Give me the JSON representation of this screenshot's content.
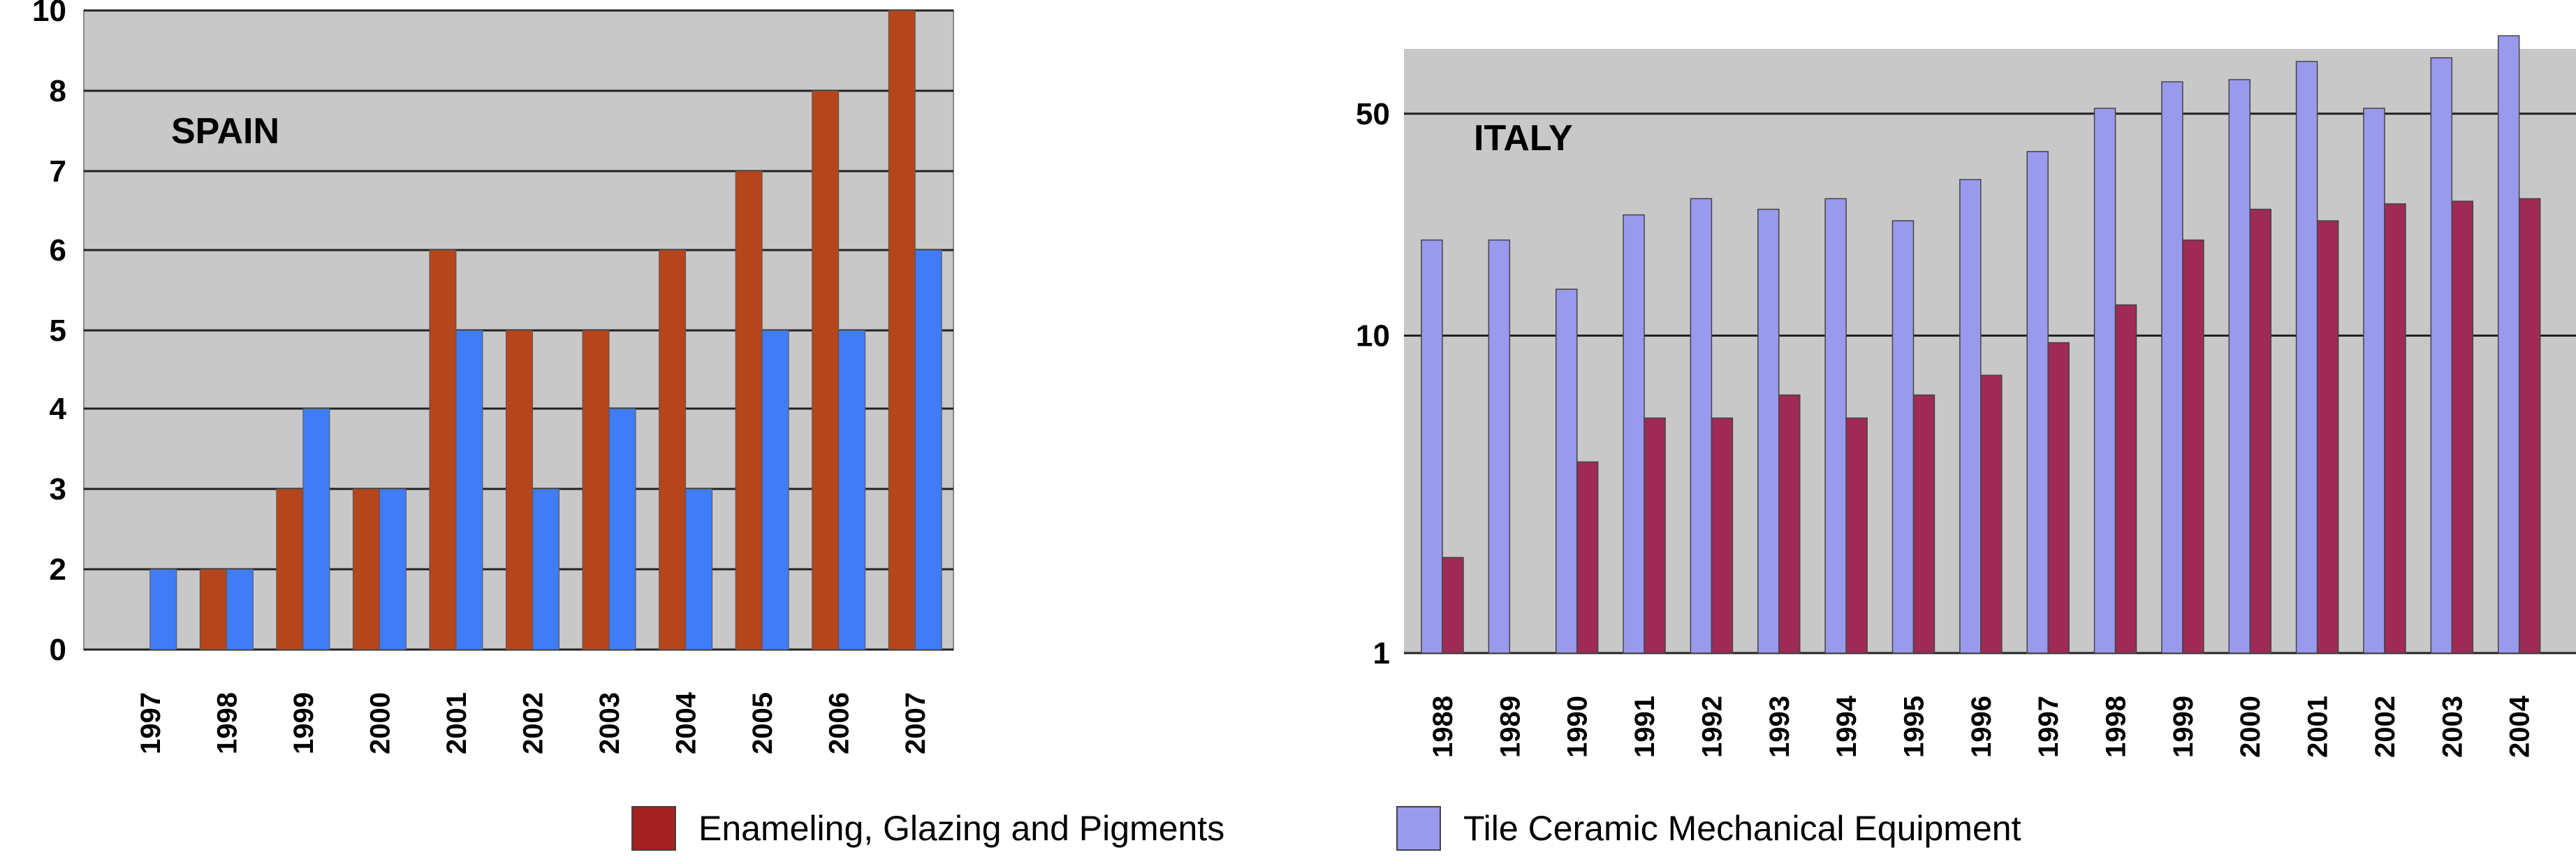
{
  "chart_data": [
    {
      "type": "bar",
      "title": "SPAIN",
      "categories": [
        "1997",
        "1998",
        "1999",
        "2000",
        "2001",
        "2002",
        "2003",
        "2004",
        "2005",
        "2006",
        "2007"
      ],
      "y_ticks": [
        "0",
        "2",
        "3",
        "4",
        "5",
        "6",
        "7",
        "8",
        "10"
      ],
      "series": [
        {
          "name": "Enameling, Glazing and Pigments",
          "color": "#b5451b",
          "values": [
            0,
            2,
            3,
            3,
            6,
            5,
            5,
            6,
            7,
            8,
            10
          ]
        },
        {
          "name": "Tile Ceramic Mechanical Equipment",
          "color": "#3f7cf5",
          "values": [
            2,
            2,
            4,
            3,
            5,
            3,
            4,
            3,
            5,
            5,
            6
          ]
        }
      ],
      "ylim": [
        0,
        10
      ],
      "grid": true,
      "background": "#c8c8c8"
    },
    {
      "type": "bar",
      "title": "ITALY",
      "yscale": "log",
      "categories": [
        "1988",
        "1989",
        "1990",
        "1991",
        "1992",
        "1993",
        "1994",
        "1995",
        "1996",
        "1997",
        "1998",
        "1999",
        "2000",
        "2001",
        "2002",
        "2003",
        "2004"
      ],
      "y_ticks": [
        "1",
        "10",
        "50"
      ],
      "series": [
        {
          "name": "Tile Ceramic Mechanical Equipment",
          "color": "#9999ee",
          "values": [
            20,
            20,
            14,
            24,
            27,
            25,
            27,
            23,
            31,
            38,
            52,
            63,
            64,
            73,
            52,
            75,
            88
          ]
        },
        {
          "name": "Enameling, Glazing and Pigments",
          "color": "#9e2a55",
          "values": [
            2,
            1,
            4,
            5.5,
            5.5,
            6.5,
            5.5,
            6.5,
            7.5,
            9.5,
            12.5,
            20,
            25,
            23,
            26,
            26.5,
            27
          ]
        }
      ],
      "ylim": [
        1,
        80
      ],
      "grid": true,
      "background": "#c8c8c8"
    }
  ],
  "legend": [
    {
      "label": "Enameling, Glazing and Pigments",
      "color": "#a32020"
    },
    {
      "label": "Tile Ceramic Mechanical Equipment",
      "color": "#9999ee"
    }
  ]
}
